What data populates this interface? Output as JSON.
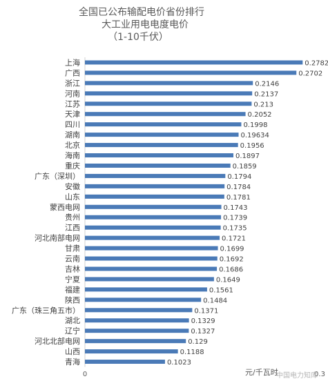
{
  "chart_data": {
    "type": "bar",
    "orientation": "horizontal",
    "title_lines": [
      "全国已公布输配电价省份排行",
      "大工业用电电度电价",
      "（1-10千伏）"
    ],
    "unit_label": "元/千瓦时",
    "xlim": [
      0,
      0.3
    ],
    "x_ticks": [
      "0",
      "0.3"
    ],
    "bar_color": "#4a7ab7",
    "categories": [
      "上海",
      "广西",
      "浙江",
      "河南",
      "江苏",
      "天津",
      "四川",
      "湖南",
      "北京",
      "海南",
      "重庆",
      "广东（深圳）",
      "安徽",
      "山东",
      "蒙西电网",
      "贵州",
      "江西",
      "河北南部电网",
      "甘肃",
      "云南",
      "吉林",
      "宁夏",
      "福建",
      "陕西",
      "广东（珠三角五市）",
      "湖北",
      "辽宁",
      "河北北部电网",
      "山西",
      "青海"
    ],
    "values": [
      0.2782,
      0.2702,
      0.2146,
      0.2137,
      0.213,
      0.2052,
      0.1998,
      0.19634,
      0.1956,
      0.1897,
      0.1859,
      0.1794,
      0.1784,
      0.1781,
      0.1743,
      0.1739,
      0.1735,
      0.1721,
      0.1699,
      0.1692,
      0.1686,
      0.1649,
      0.1561,
      0.1484,
      0.1371,
      0.1329,
      0.1327,
      0.129,
      0.1188,
      0.1023
    ],
    "value_labels": [
      "0.2782",
      "0.2702",
      "0.2146",
      "0.2137",
      "0.213",
      "0.2052",
      "0.1998",
      "0.19634",
      "0.1956",
      "0.1897",
      "0.1859",
      "0.1794",
      "0.1784",
      "0.1781",
      "0.1743",
      "0.1739",
      "0.1735",
      "0.1721",
      "0.1699",
      "0.1692",
      "0.1686",
      "0.1649",
      "0.1561",
      "0.1484",
      "0.1371",
      "0.1329",
      "0.1327",
      "0.129",
      "0.1188",
      "0.1023"
    ]
  },
  "watermark": "中国电力知库"
}
